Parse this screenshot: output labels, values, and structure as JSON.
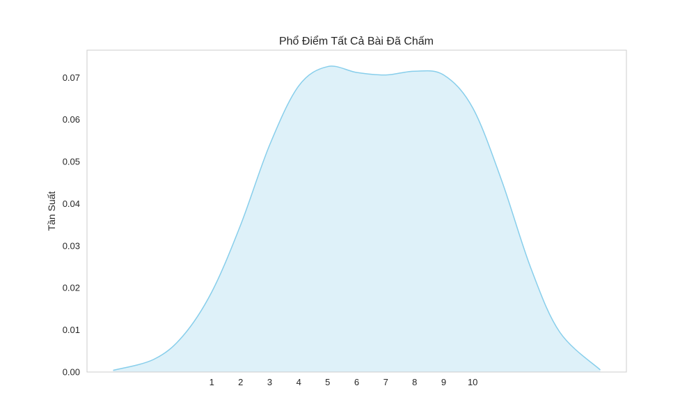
{
  "chart_data": {
    "type": "area",
    "title": "Phổ Điểm Tất Cả Bài Đã Chấm",
    "xlabel": "",
    "ylabel": "Tần Suất",
    "xlim": [
      -3.3,
      15.3
    ],
    "ylim": [
      0.0,
      0.0765
    ],
    "x_ticks": [
      1,
      2,
      3,
      4,
      5,
      6,
      7,
      8,
      9,
      10
    ],
    "x_tick_labels": [
      "1",
      "2",
      "3",
      "4",
      "5",
      "6",
      "7",
      "8",
      "9",
      "10"
    ],
    "y_ticks": [
      0.0,
      0.01,
      0.02,
      0.03,
      0.04,
      0.05,
      0.06,
      0.07
    ],
    "y_tick_labels": [
      "0.00",
      "0.01",
      "0.02",
      "0.03",
      "0.04",
      "0.05",
      "0.06",
      "0.07"
    ],
    "grid": false,
    "legend": "none",
    "series": [
      {
        "x": [
          -2.4,
          -1.0,
          0.0,
          1.0,
          2.0,
          3.0,
          4.0,
          5.0,
          6.0,
          7.0,
          8.0,
          9.0,
          10.0,
          11.0,
          12.0,
          13.0,
          14.4
        ],
        "y": [
          0.0004,
          0.003,
          0.0085,
          0.019,
          0.035,
          0.054,
          0.068,
          0.0726,
          0.0712,
          0.0706,
          0.0715,
          0.0706,
          0.0628,
          0.0455,
          0.0248,
          0.0095,
          0.0005
        ]
      }
    ],
    "colors": {
      "line": "#87ceeb",
      "fill": "#87ceeb",
      "frame": "#cccccc",
      "text": "#262626"
    }
  }
}
